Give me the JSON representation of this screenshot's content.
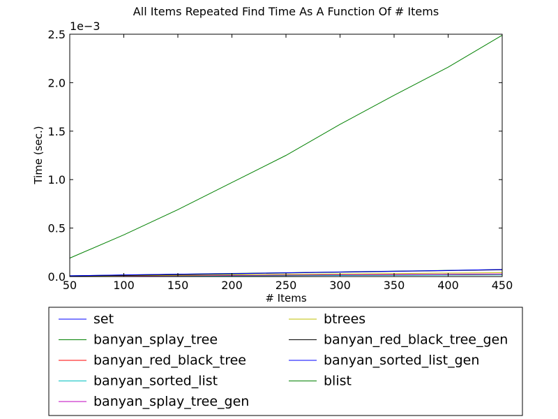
{
  "chart_data": {
    "type": "line",
    "title": "All Items Repeated Find Time As A Function Of # Items",
    "xlabel": "# Items",
    "ylabel": "Time (sec.)",
    "y_scale_label": "1e−3",
    "xlim": [
      50,
      450
    ],
    "ylim": [
      0,
      2.5
    ],
    "y_unit_multiplier": 0.001,
    "x_ticks": [
      50,
      100,
      150,
      200,
      250,
      300,
      350,
      400,
      450
    ],
    "y_ticks": [
      0.0,
      0.5,
      1.0,
      1.5,
      2.0,
      2.5
    ],
    "y_tick_labels": [
      "0.0",
      "0.5",
      "1.0",
      "1.5",
      "2.0",
      "2.5"
    ],
    "grid": false,
    "legend_position": "below",
    "x": [
      50,
      100,
      150,
      200,
      250,
      300,
      350,
      400,
      450
    ],
    "series": [
      {
        "name": "set",
        "color": "#0000ff",
        "values": [
          0.0,
          0.0,
          0.0,
          0.0,
          0.0,
          0.0,
          0.0,
          0.0,
          0.0
        ]
      },
      {
        "name": "banyan_splay_tree",
        "color": "#008000",
        "values": [
          0.008,
          0.016,
          0.024,
          0.032,
          0.04,
          0.048,
          0.056,
          0.064,
          0.072
        ]
      },
      {
        "name": "banyan_red_black_tree",
        "color": "#ff0000",
        "values": [
          0.002,
          0.004,
          0.006,
          0.008,
          0.01,
          0.012,
          0.014,
          0.016,
          0.018
        ]
      },
      {
        "name": "banyan_sorted_list",
        "color": "#00bfbf",
        "values": [
          0.002,
          0.003,
          0.005,
          0.007,
          0.009,
          0.011,
          0.013,
          0.015,
          0.017
        ]
      },
      {
        "name": "banyan_splay_tree_gen",
        "color": "#bf00bf",
        "values": [
          0.003,
          0.006,
          0.009,
          0.012,
          0.015,
          0.018,
          0.021,
          0.024,
          0.027
        ]
      },
      {
        "name": "btrees",
        "color": "#bfbf00",
        "values": [
          0.004,
          0.009,
          0.013,
          0.018,
          0.022,
          0.027,
          0.031,
          0.036,
          0.04
        ]
      },
      {
        "name": "banyan_red_black_tree_gen",
        "color": "#000000",
        "values": [
          0.006,
          0.012,
          0.02,
          0.028,
          0.037,
          0.045,
          0.053,
          0.061,
          0.069
        ]
      },
      {
        "name": "banyan_sorted_list_gen",
        "color": "#0000ff",
        "values": [
          0.008,
          0.017,
          0.024,
          0.03,
          0.039,
          0.047,
          0.055,
          0.063,
          0.073
        ]
      },
      {
        "name": "blist",
        "color": "#008000",
        "values": [
          0.19,
          0.43,
          0.69,
          0.97,
          1.25,
          1.57,
          1.87,
          2.16,
          2.49
        ]
      }
    ]
  }
}
